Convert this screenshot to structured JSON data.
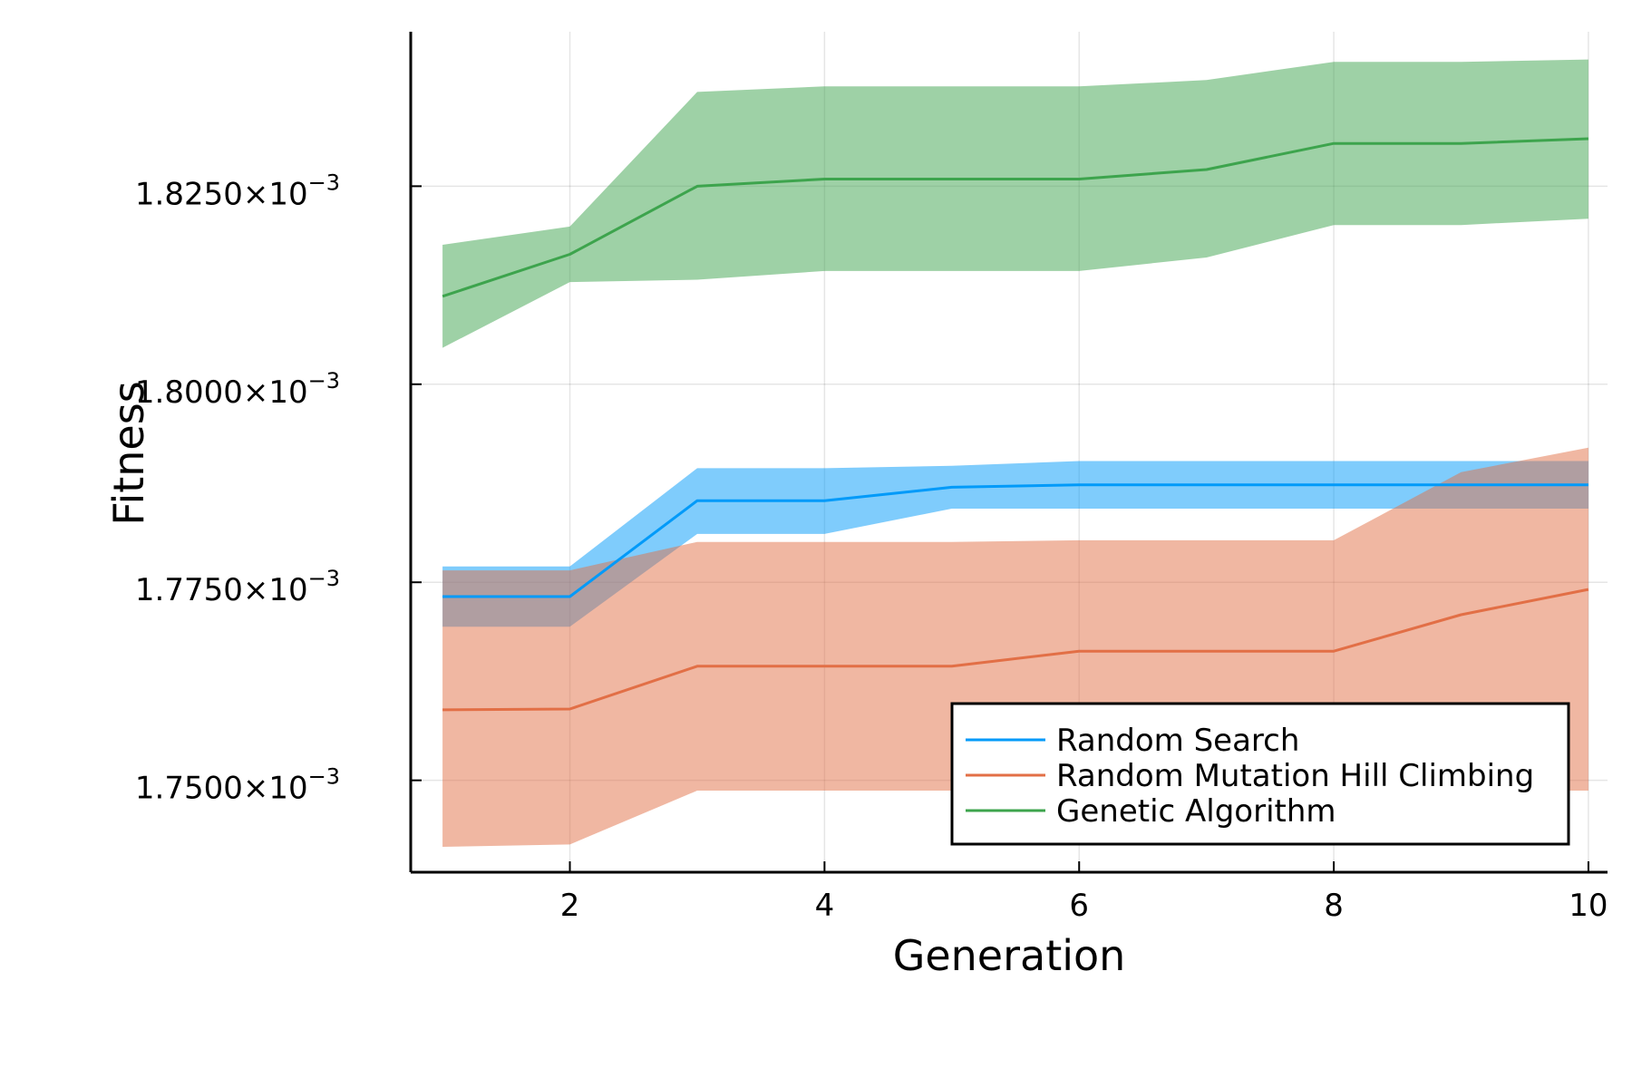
{
  "chart_data": {
    "type": "line",
    "title": "",
    "xlabel": "Generation",
    "ylabel": "Fitness",
    "xlim": [
      0.75,
      10.15
    ],
    "ylim": [
      1.7384,
      1.8445
    ],
    "y_scale_label": "×10",
    "y_exponent": "−3",
    "xticks": [
      2,
      4,
      6,
      8,
      10
    ],
    "xtick_labels": [
      "2",
      "4",
      "6",
      "8",
      "10"
    ],
    "yticks": [
      1.75,
      1.775,
      1.8,
      1.825
    ],
    "ytick_labels": [
      "1.7500",
      "1.7750",
      "1.8000",
      "1.8250"
    ],
    "grid": true,
    "legend_position": "bottom-right",
    "x": [
      1,
      2,
      3,
      4,
      5,
      6,
      7,
      8,
      9,
      10
    ],
    "series": [
      {
        "name": "Random Search",
        "color": "#009af9",
        "band_color": "#7fc8f6",
        "values": [
          1.7732,
          1.7732,
          1.7853,
          1.7853,
          1.787,
          1.7873,
          1.7873,
          1.7873,
          1.7873,
          1.7873
        ],
        "lower": [
          1.7694,
          1.7694,
          1.7811,
          1.7811,
          1.7843,
          1.7843,
          1.7843,
          1.7843,
          1.7843,
          1.7843
        ],
        "upper": [
          1.777,
          1.777,
          1.7894,
          1.7894,
          1.7897,
          1.7903,
          1.7903,
          1.7903,
          1.7903,
          1.7903
        ]
      },
      {
        "name": "Random Mutation Hill Climbing",
        "color": "#e26f46",
        "band_color": "#f0b49f",
        "values": [
          1.7589,
          1.759,
          1.7644,
          1.7644,
          1.7644,
          1.7663,
          1.7663,
          1.7663,
          1.7709,
          1.7741
        ],
        "lower": [
          1.7416,
          1.7419,
          1.7487,
          1.7487,
          1.7487,
          1.7487,
          1.7487,
          1.7487,
          1.7487,
          1.7487
        ],
        "upper": [
          1.7765,
          1.7765,
          1.7801,
          1.7801,
          1.7801,
          1.7803,
          1.7803,
          1.7803,
          1.7889,
          1.792
        ]
      },
      {
        "name": "Genetic Algorithm",
        "color": "#3da44d",
        "band_color": "#9dcf9e",
        "values": [
          1.8111,
          1.8164,
          1.825,
          1.8259,
          1.8259,
          1.8259,
          1.8271,
          1.8304,
          1.8304,
          1.831
        ],
        "lower": [
          1.8046,
          1.8129,
          1.8132,
          1.8143,
          1.8143,
          1.8143,
          1.816,
          1.8201,
          1.8201,
          1.8209
        ],
        "upper": [
          1.8176,
          1.8199,
          1.8369,
          1.8376,
          1.8376,
          1.8376,
          1.8384,
          1.8407,
          1.8407,
          1.841
        ]
      }
    ]
  }
}
